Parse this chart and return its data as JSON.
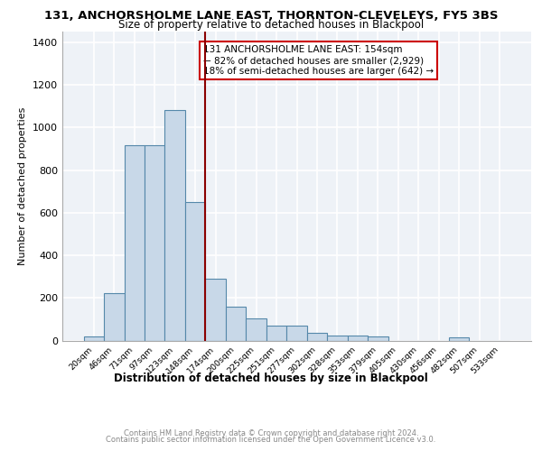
{
  "title1": "131, ANCHORSHOLME LANE EAST, THORNTON-CLEVELEYS, FY5 3BS",
  "title2": "Size of property relative to detached houses in Blackpool",
  "xlabel": "Distribution of detached houses by size in Blackpool",
  "ylabel": "Number of detached properties",
  "footer1": "Contains HM Land Registry data © Crown copyright and database right 2024.",
  "footer2": "Contains public sector information licensed under the Open Government Licence v3.0.",
  "bin_labels": [
    "20sqm",
    "46sqm",
    "71sqm",
    "97sqm",
    "123sqm",
    "148sqm",
    "174sqm",
    "200sqm",
    "225sqm",
    "251sqm",
    "277sqm",
    "302sqm",
    "328sqm",
    "353sqm",
    "379sqm",
    "405sqm",
    "430sqm",
    "456sqm",
    "482sqm",
    "507sqm",
    "533sqm"
  ],
  "bar_values": [
    20,
    222,
    915,
    915,
    1080,
    650,
    290,
    160,
    105,
    70,
    70,
    38,
    25,
    22,
    20,
    0,
    0,
    0,
    15,
    0,
    0
  ],
  "bar_color": "#c8d8e8",
  "bar_edge_color": "#5588aa",
  "vline_x": 5.5,
  "vline_color": "#8b0000",
  "annotation_line1": "131 ANCHORSHOLME LANE EAST: 154sqm",
  "annotation_line2": "← 82% of detached houses are smaller (2,929)",
  "annotation_line3": "18% of semi-detached houses are larger (642) →",
  "annotation_box_color": "white",
  "annotation_box_edge_color": "#cc0000",
  "ylim": [
    0,
    1450
  ],
  "yticks": [
    0,
    200,
    400,
    600,
    800,
    1000,
    1200,
    1400
  ],
  "plot_bg_color": "#eef2f7",
  "grid_color": "white",
  "spine_color": "#aaaaaa"
}
